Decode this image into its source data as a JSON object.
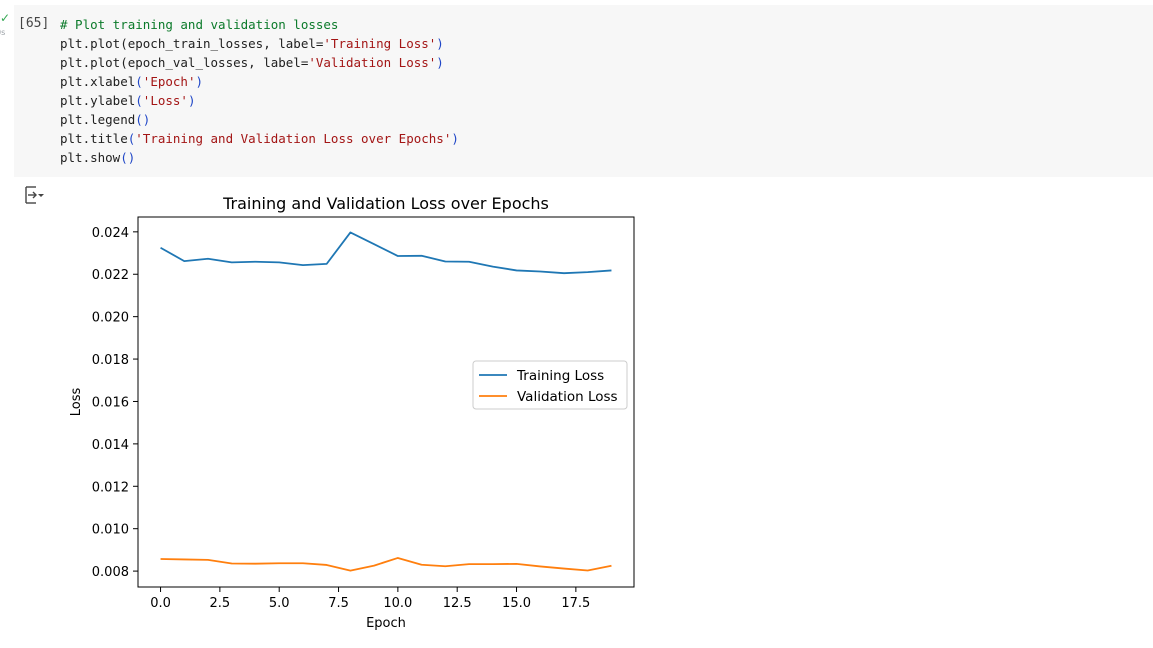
{
  "cell": {
    "exec_count": "[65]",
    "status_time": "0s",
    "code_lines": [
      [
        {
          "t": "# Plot training and validation losses",
          "c": "cm"
        }
      ],
      [
        {
          "t": "plt.plot(epoch_train_losses, label="
        },
        {
          "t": "'Training Loss'",
          "c": "str"
        },
        {
          "t": ")",
          "c": "par"
        }
      ],
      [
        {
          "t": "plt.plot(epoch_val_losses, label="
        },
        {
          "t": "'Validation Loss'",
          "c": "str"
        },
        {
          "t": ")",
          "c": "par"
        }
      ],
      [
        {
          "t": "plt.xlabel"
        },
        {
          "t": "(",
          "c": "par"
        },
        {
          "t": "'Epoch'",
          "c": "str"
        },
        {
          "t": ")",
          "c": "par"
        }
      ],
      [
        {
          "t": "plt.ylabel"
        },
        {
          "t": "(",
          "c": "par"
        },
        {
          "t": "'Loss'",
          "c": "str"
        },
        {
          "t": ")",
          "c": "par"
        }
      ],
      [
        {
          "t": "plt.legend"
        },
        {
          "t": "()",
          "c": "par"
        }
      ],
      [
        {
          "t": "plt.title"
        },
        {
          "t": "(",
          "c": "par"
        },
        {
          "t": "'Training and Validation Loss over Epochs'",
          "c": "str"
        },
        {
          "t": ")",
          "c": "par"
        }
      ],
      [
        {
          "t": "plt.show"
        },
        {
          "t": "()",
          "c": "par"
        }
      ]
    ]
  },
  "output_icon": "output-collapse-icon",
  "chart_data": {
    "type": "line",
    "title": "Training and Validation Loss over Epochs",
    "xlabel": "Epoch",
    "ylabel": "Loss",
    "xlim": [
      -0.95,
      19.95
    ],
    "ylim": [
      0.00725,
      0.0247
    ],
    "xticks": [
      0.0,
      2.5,
      5.0,
      7.5,
      10.0,
      12.5,
      15.0,
      17.5
    ],
    "xtick_labels": [
      "0.0",
      "2.5",
      "5.0",
      "7.5",
      "10.0",
      "12.5",
      "15.0",
      "17.5"
    ],
    "yticks": [
      0.008,
      0.01,
      0.012,
      0.014,
      0.016,
      0.018,
      0.02,
      0.022,
      0.024
    ],
    "ytick_labels": [
      "0.008",
      "0.010",
      "0.012",
      "0.014",
      "0.016",
      "0.018",
      "0.020",
      "0.022",
      "0.024"
    ],
    "grid": false,
    "legend_position": "center-right",
    "x": [
      0,
      1,
      2,
      3,
      4,
      5,
      6,
      7,
      8,
      9,
      10,
      11,
      12,
      13,
      14,
      15,
      16,
      17,
      18,
      19
    ],
    "series": [
      {
        "name": "Training Loss",
        "color": "#1f77b4",
        "values": [
          0.02325,
          0.02262,
          0.02273,
          0.02256,
          0.02259,
          0.02256,
          0.02243,
          0.02249,
          0.02397,
          0.02342,
          0.02286,
          0.02287,
          0.0226,
          0.02259,
          0.02236,
          0.02218,
          0.02213,
          0.02205,
          0.0221,
          0.02218
        ]
      },
      {
        "name": "Validation Loss",
        "color": "#ff7f0e",
        "values": [
          0.00857,
          0.00855,
          0.00853,
          0.00836,
          0.00835,
          0.00837,
          0.00837,
          0.00829,
          0.00802,
          0.00826,
          0.00862,
          0.0083,
          0.00823,
          0.00833,
          0.00833,
          0.00834,
          0.00822,
          0.00812,
          0.00803,
          0.00825
        ]
      }
    ]
  }
}
